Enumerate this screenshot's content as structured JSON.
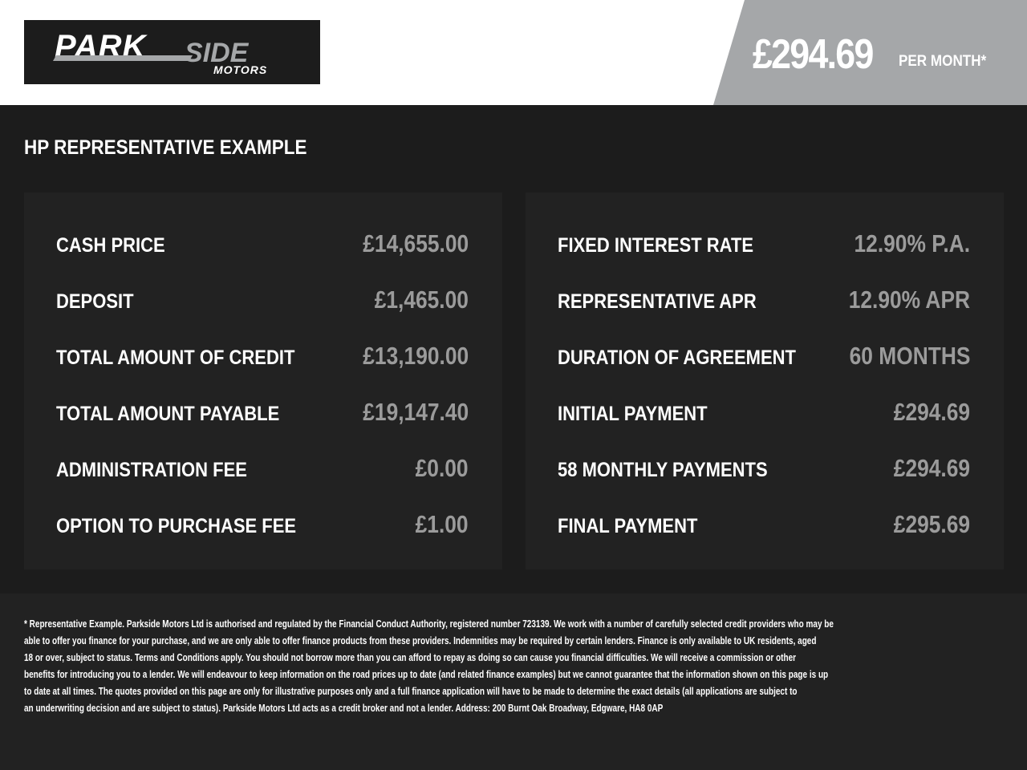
{
  "header": {
    "logo_text": "PARKSIDE MOTORS",
    "price": "£294.69",
    "per_month": "PER MONTH*",
    "colors": {
      "banner": "#a5a7a9",
      "background": "#1c1c1c",
      "panel": "#222222",
      "value": "#9b9b9b"
    }
  },
  "title": "HP REPRESENTATIVE EXAMPLE",
  "left": [
    {
      "label": "CASH PRICE",
      "value": "£14,655.00"
    },
    {
      "label": "DEPOSIT",
      "value": "£1,465.00"
    },
    {
      "label": "TOTAL AMOUNT OF CREDIT",
      "value": "£13,190.00"
    },
    {
      "label": "TOTAL AMOUNT PAYABLE",
      "value": "£19,147.40"
    },
    {
      "label": "ADMINISTRATION FEE",
      "value": "£0.00"
    },
    {
      "label": "OPTION TO PURCHASE FEE",
      "value": "£1.00"
    }
  ],
  "right": [
    {
      "label": "FIXED INTEREST RATE",
      "value": "12.90% P.A."
    },
    {
      "label": "REPRESENTATIVE APR",
      "value": "12.90% APR"
    },
    {
      "label": "DURATION OF AGREEMENT",
      "value": "60 MONTHS"
    },
    {
      "label": "INITIAL PAYMENT",
      "value": "£294.69"
    },
    {
      "label": "58 MONTHLY PAYMENTS",
      "value": "£294.69"
    },
    {
      "label": "FINAL PAYMENT",
      "value": "£295.69"
    }
  ],
  "footer": [
    "* Representative Example. Parkside Motors Ltd is authorised and regulated by the Financial Conduct Authority, registered number 723139. We work with a number of carefully selected credit providers who may be",
    "able to offer you finance for your purchase, and we are only able to offer finance products from these providers. Indemnities may be required by certain lenders. Finance is only available to UK residents, aged",
    "18 or over, subject to status. Terms and Conditions apply. You should not borrow more than you can afford to repay as doing so can cause you financial difficulties. We will receive a commission or other",
    "benefits for introducing you to a lender. We will endeavour to keep information on the road prices up to date (and related finance examples) but we cannot guarantee that the information shown on this page is up",
    "to date at all times. The quotes provided on this page are only for illustrative purposes only and a full finance application will have to be made to determine the exact details (all applications are subject to",
    "an underwriting decision and are subject to status). Parkside Motors Ltd acts as a credit broker and not a lender. Address: 200 Burnt Oak Broadway, Edgware, HA8 0AP"
  ]
}
